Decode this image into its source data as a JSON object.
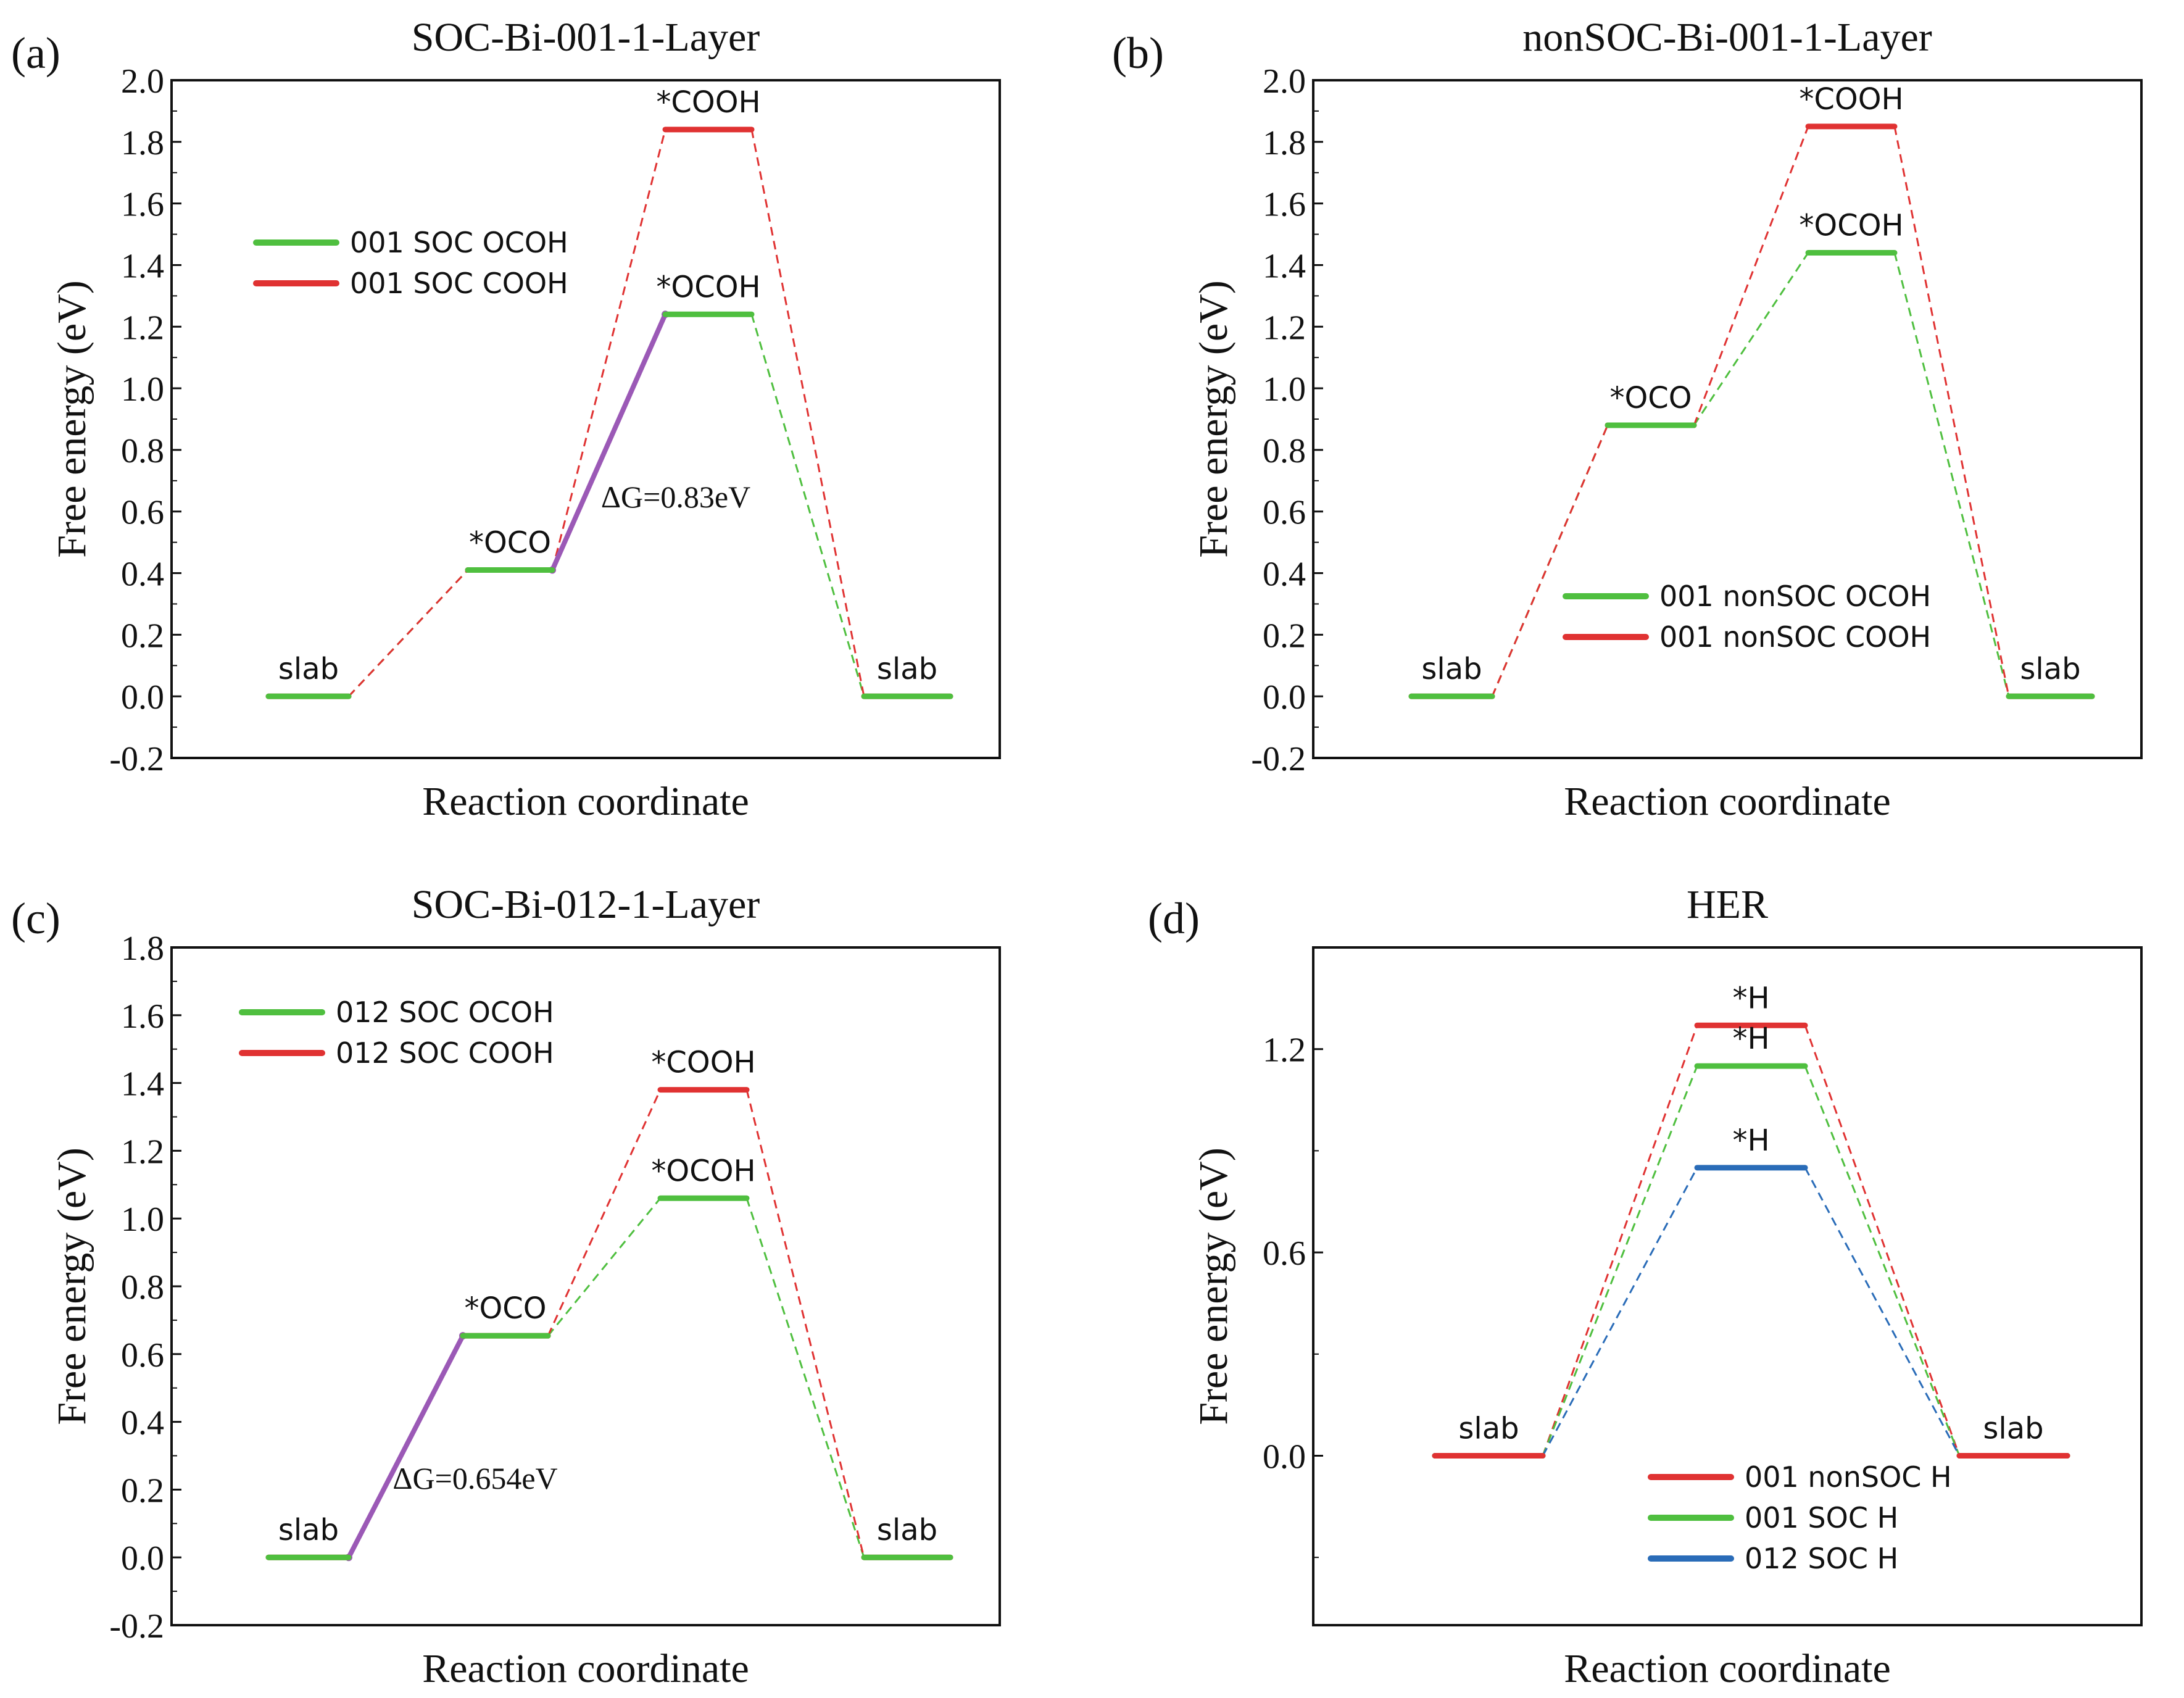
{
  "chart_data": [
    {
      "panel": "(a)",
      "type": "line",
      "title": "SOC-Bi-001-1-Layer",
      "xlabel": "Reaction coordinate",
      "ylabel": "Free energy (eV)",
      "ylim": [
        -0.2,
        2.0
      ],
      "yticks": [
        "-0.2",
        "0.0",
        "0.2",
        "0.4",
        "0.6",
        "0.8",
        "1.0",
        "1.2",
        "1.4",
        "1.6",
        "1.8",
        "2.0"
      ],
      "legend_position": "upper-left",
      "series": [
        {
          "name": "001 SOC OCOH",
          "color": "#4fbf3f",
          "steps": [
            0,
            0.41,
            1.24,
            0
          ],
          "labels": [
            "slab",
            "*OCO",
            "*OCOH",
            "slab"
          ]
        },
        {
          "name": "001 SOC COOH",
          "color": "#e03232",
          "steps": [
            0,
            0.41,
            1.84,
            0
          ],
          "labels": [
            "slab",
            "*OCO",
            "*COOH",
            "slab"
          ]
        }
      ],
      "step_labels": [
        {
          "text": "slab",
          "step": 0,
          "value": 0.0
        },
        {
          "text": "*OCO",
          "step": 1,
          "value": 0.41
        },
        {
          "text": "*OCOH",
          "step": 2,
          "value": 1.24
        },
        {
          "text": "*COOH",
          "step": 2,
          "value": 1.84
        },
        {
          "text": "slab",
          "step": 3,
          "value": 0.0
        }
      ],
      "highlight": {
        "from_step": 1,
        "to_step": 2,
        "from": 0.41,
        "to": 1.24,
        "color": "#9b59b6",
        "label": "ΔG=0.83eV"
      }
    },
    {
      "panel": "(b)",
      "type": "line",
      "title": "nonSOC-Bi-001-1-Layer",
      "xlabel": "Reaction coordinate",
      "ylabel": "Free energy (eV)",
      "ylim": [
        -0.2,
        2.0
      ],
      "yticks": [
        "-0.2",
        "0.0",
        "0.2",
        "0.4",
        "0.6",
        "0.8",
        "1.0",
        "1.2",
        "1.4",
        "1.6",
        "1.8",
        "2.0"
      ],
      "legend_position": "lower-center",
      "series": [
        {
          "name": "001 nonSOC OCOH",
          "color": "#4fbf3f",
          "steps": [
            0,
            0.88,
            1.44,
            0
          ],
          "labels": [
            "slab",
            "*OCO",
            "*OCOH",
            "slab"
          ]
        },
        {
          "name": "001 nonSOC COOH",
          "color": "#e03232",
          "steps": [
            0,
            0.88,
            1.85,
            0
          ],
          "labels": [
            "slab",
            "*OCO",
            "*COOH",
            "slab"
          ]
        }
      ],
      "step_labels": [
        {
          "text": "slab",
          "step": 0,
          "value": 0.0
        },
        {
          "text": "*OCO",
          "step": 1,
          "value": 0.88
        },
        {
          "text": "*OCOH",
          "step": 2,
          "value": 1.44
        },
        {
          "text": "*COOH",
          "step": 2,
          "value": 1.85
        },
        {
          "text": "slab",
          "step": 3,
          "value": 0.0
        }
      ]
    },
    {
      "panel": "(c)",
      "type": "line",
      "title": "SOC-Bi-012-1-Layer",
      "xlabel": "Reaction coordinate",
      "ylabel": "Free energy (eV)",
      "ylim": [
        -0.2,
        1.8
      ],
      "yticks": [
        "-0.2",
        "0.0",
        "0.2",
        "0.4",
        "0.6",
        "0.8",
        "1.0",
        "1.2",
        "1.4",
        "1.6",
        "1.8"
      ],
      "legend_position": "upper-left",
      "series": [
        {
          "name": "012 SOC OCOH",
          "color": "#4fbf3f",
          "steps": [
            0,
            0.654,
            1.06,
            0
          ],
          "labels": [
            "slab",
            "*OCO",
            "*OCOH",
            "slab"
          ]
        },
        {
          "name": "012 SOC COOH",
          "color": "#e03232",
          "steps": [
            0,
            0.654,
            1.38,
            0
          ],
          "labels": [
            "slab",
            "*OCO",
            "*COOH",
            "slab"
          ]
        }
      ],
      "step_labels": [
        {
          "text": "slab",
          "step": 0,
          "value": 0.0
        },
        {
          "text": "*OCO",
          "step": 1,
          "value": 0.654
        },
        {
          "text": "*OCOH",
          "step": 2,
          "value": 1.06
        },
        {
          "text": "*COOH",
          "step": 2,
          "value": 1.38
        },
        {
          "text": "slab",
          "step": 3,
          "value": 0.0
        }
      ],
      "highlight": {
        "from_step": 0,
        "to_step": 1,
        "from": 0.0,
        "to": 0.654,
        "color": "#9b59b6",
        "label": "ΔG=0.654eV"
      }
    },
    {
      "panel": "(d)",
      "type": "line",
      "title": "HER",
      "xlabel": "Reaction coordinate",
      "ylabel": "Free energy (eV)",
      "ylim": [
        -0.5,
        1.5
      ],
      "yticks": [
        "0.0",
        "0.6",
        "1.2"
      ],
      "ytick_values": [
        0.0,
        0.6,
        1.2
      ],
      "legend_position": "lower-center",
      "series": [
        {
          "name": "001 nonSOC H",
          "color": "#e03232",
          "steps": [
            0,
            1.27,
            0
          ],
          "labels": [
            "slab",
            "*H",
            "slab"
          ]
        },
        {
          "name": "001 SOC H",
          "color": "#4fbf3f",
          "steps": [
            0,
            1.15,
            0
          ],
          "labels": [
            "slab",
            "*H",
            "slab"
          ]
        },
        {
          "name": "012 SOC H",
          "color": "#2a6cb8",
          "steps": [
            0,
            0.85,
            0
          ],
          "labels": [
            "slab",
            "*H",
            "slab"
          ]
        }
      ],
      "step_labels": [
        {
          "text": "slab",
          "step": 0,
          "value": 0.0
        },
        {
          "text": "*H",
          "step": 1,
          "value": 1.27
        },
        {
          "text": "*H",
          "step": 1,
          "value": 1.15
        },
        {
          "text": "*H",
          "step": 1,
          "value": 0.85
        },
        {
          "text": "slab",
          "step": 2,
          "value": 0.0
        }
      ]
    }
  ]
}
